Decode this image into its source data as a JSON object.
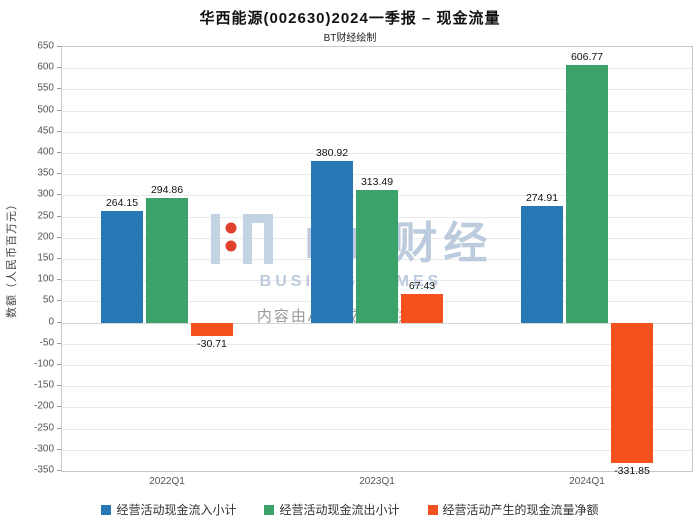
{
  "title": "华西能源(002630)2024一季报 – 现金流量",
  "subtitle": "BT财经绘制",
  "watermark": {
    "brand": "BT 财经",
    "brand_en": "BUSINESSTIMES",
    "disclaimer": "内容由AI生成，仅供参考",
    "logo_color": "#c3d3e4",
    "dot_color": "#e2402e"
  },
  "chart_data": {
    "type": "bar",
    "categories": [
      "2022Q1",
      "2023Q1",
      "2024Q1"
    ],
    "series": [
      {
        "name": "经营活动现金流入小计",
        "color": "#2878b5",
        "values": [
          264.15,
          380.92,
          274.91
        ]
      },
      {
        "name": "经营活动现金流出小计",
        "color": "#3ba26a",
        "values": [
          294.86,
          313.49,
          606.77
        ]
      },
      {
        "name": "经营活动产生的现金流量净额",
        "color": "#f4511e",
        "values": [
          -30.71,
          67.43,
          -331.85
        ]
      }
    ],
    "title": "华西能源(002630)2024一季报 – 现金流量",
    "xlabel": "",
    "ylabel": "数额（人民币百万元）",
    "ylim": [
      -350,
      650
    ],
    "ytick_step": 50,
    "grid": true,
    "legend_position": "bottom"
  }
}
